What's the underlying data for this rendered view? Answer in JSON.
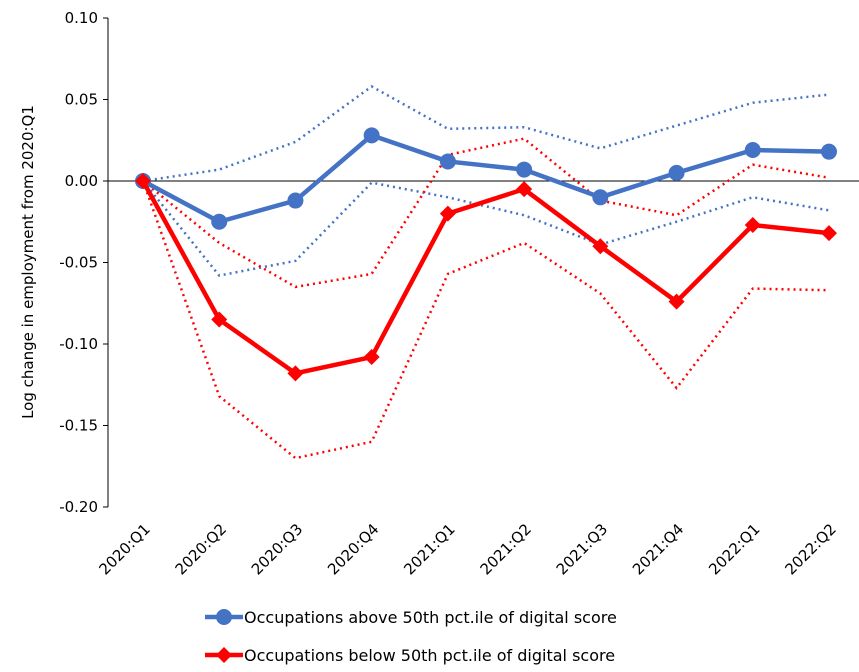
{
  "chart_data": {
    "type": "line",
    "y_label": "Log change in employment from 2020:Q1",
    "categories": [
      "2020:Q1",
      "2020:Q2",
      "2020:Q3",
      "2020:Q4",
      "2021:Q1",
      "2021:Q2",
      "2021:Q3",
      "2021:Q4",
      "2022:Q1",
      "2022:Q2"
    ],
    "series": [
      {
        "name": "Occupations above 50th pct.ile of digital score",
        "color": "#4472c4",
        "marker": "circle",
        "values": [
          0,
          -0.025,
          -0.012,
          0.028,
          0.012,
          0.007,
          -0.01,
          0.005,
          0.019,
          0.018
        ],
        "upper": [
          0,
          0.007,
          0.024,
          0.058,
          0.032,
          0.033,
          0.02,
          0.034,
          0.048,
          0.053
        ],
        "lower": [
          0,
          -0.058,
          -0.049,
          -0.001,
          -0.01,
          -0.021,
          -0.039,
          -0.025,
          -0.01,
          -0.018
        ]
      },
      {
        "name": "Occupations below 50th pct.ile of digital score",
        "color": "#ff0000",
        "marker": "diamond",
        "values": [
          0,
          -0.085,
          -0.118,
          -0.108,
          -0.02,
          -0.005,
          -0.04,
          -0.074,
          -0.027,
          -0.032
        ],
        "upper": [
          0,
          -0.038,
          -0.065,
          -0.057,
          0.016,
          0.026,
          -0.012,
          -0.021,
          0.01,
          0.002
        ],
        "lower": [
          0,
          -0.132,
          -0.17,
          -0.16,
          -0.057,
          -0.038,
          -0.069,
          -0.127,
          -0.066,
          -0.067
        ]
      }
    ],
    "ylim": [
      -0.2,
      0.1
    ],
    "yticks": [
      {
        "value": 0.1,
        "label": "0.10"
      },
      0.05,
      {
        "value": 0,
        "label": "0.00"
      },
      -0.05,
      {
        "value": -0.1,
        "label": "-0.10"
      },
      -0.15,
      {
        "value": -0.2,
        "label": "-0.20"
      }
    ]
  }
}
